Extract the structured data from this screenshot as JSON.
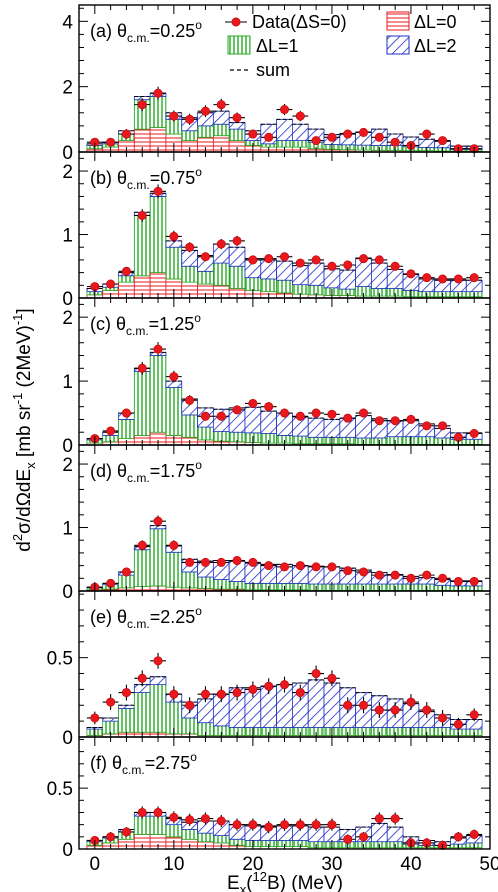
{
  "chart_data": {
    "type": "bar",
    "ylabel_parts": [
      "d",
      "2",
      "σ/dΩdE",
      "x",
      " [mb sr",
      "-1",
      " (2MeV)",
      "-1",
      "]"
    ],
    "xlabel_parts": [
      "E",
      "x",
      "(",
      "12",
      "B) (MeV)"
    ],
    "xlim": [
      -2,
      50
    ],
    "xticks": [
      0,
      10,
      20,
      30,
      40,
      50
    ],
    "x": [
      0,
      2,
      4,
      6,
      8,
      10,
      12,
      14,
      16,
      18,
      20,
      22,
      24,
      26,
      28,
      30,
      32,
      34,
      36,
      38,
      40,
      42,
      44,
      46,
      48
    ],
    "legend": {
      "data": "Data(ΔS=0)",
      "dl0": "ΔL=0",
      "dl1": "ΔL=1",
      "dl2": "ΔL=2",
      "sum": "sum"
    },
    "colors": {
      "data": "#e8181e",
      "dl0": "#e8181e",
      "dl1": "#22aa22",
      "dl2": "#1f2dc8",
      "sum": "#000000"
    },
    "panels": [
      {
        "label": "(a)",
        "angle": "0.25",
        "ylim": [
          0,
          4.5
        ],
        "yticks": [
          0,
          2,
          4
        ],
        "values": [
          0.3,
          0.3,
          0.55,
          1.45,
          1.8,
          1.1,
          1.0,
          1.25,
          1.45,
          1.05,
          0.55,
          0.45,
          1.3,
          1.1,
          0.35,
          0.45,
          0.55,
          0.6,
          0.45,
          0.3,
          0.2,
          0.55,
          0.35,
          0.1,
          0.1
        ],
        "errors": [
          0.12,
          0.12,
          0.15,
          0.2,
          0.2,
          0.17,
          0.17,
          0.18,
          0.18,
          0.16,
          0.13,
          0.13,
          0.17,
          0.16,
          0.12,
          0.12,
          0.13,
          0.13,
          0.12,
          0.12,
          0.1,
          0.13,
          0.12,
          0.1,
          0.1
        ],
        "dl0": [
          0.1,
          0.15,
          0.35,
          0.7,
          0.75,
          0.55,
          0.35,
          0.45,
          0.5,
          0.35,
          0.2,
          0.15,
          0.15,
          0.15,
          0.1,
          0.08,
          0.07,
          0.06,
          0.05,
          0.05,
          0.04,
          0.04,
          0.03,
          0.03,
          0.03
        ],
        "dl1": [
          0.1,
          0.1,
          0.2,
          0.9,
          0.95,
          0.45,
          0.3,
          0.35,
          0.35,
          0.35,
          0.15,
          0.1,
          0.2,
          0.2,
          0.2,
          0.15,
          0.15,
          0.15,
          0.15,
          0.15,
          0.12,
          0.1,
          0.1,
          0.05,
          0.05
        ],
        "dl2": [
          0.05,
          0.05,
          0.1,
          0.1,
          0.1,
          0.2,
          0.4,
          0.4,
          0.4,
          0.2,
          0.3,
          0.6,
          0.65,
          0.5,
          0.4,
          0.3,
          0.35,
          0.4,
          0.5,
          0.35,
          0.3,
          0.25,
          0.2,
          0.1,
          0.1
        ]
      },
      {
        "label": "(b)",
        "angle": "0.75",
        "ylim": [
          0,
          2.3
        ],
        "yticks": [
          0,
          1,
          2
        ],
        "values": [
          0.18,
          0.22,
          0.42,
          1.3,
          1.68,
          0.97,
          0.8,
          0.65,
          0.85,
          0.9,
          0.6,
          0.62,
          0.65,
          0.55,
          0.6,
          0.5,
          0.52,
          0.62,
          0.6,
          0.5,
          0.38,
          0.32,
          0.3,
          0.3,
          0.32
        ],
        "errors": [
          0.06,
          0.06,
          0.07,
          0.1,
          0.11,
          0.09,
          0.08,
          0.07,
          0.08,
          0.08,
          0.07,
          0.07,
          0.07,
          0.07,
          0.07,
          0.07,
          0.07,
          0.07,
          0.07,
          0.07,
          0.06,
          0.06,
          0.06,
          0.06,
          0.06
        ],
        "dl0": [
          0.05,
          0.12,
          0.25,
          0.35,
          0.4,
          0.3,
          0.25,
          0.22,
          0.2,
          0.15,
          0.12,
          0.1,
          0.08,
          0.06,
          0.05,
          0.04,
          0.04,
          0.03,
          0.03,
          0.03,
          0.02,
          0.02,
          0.02,
          0.02,
          0.02
        ],
        "dl1": [
          0.05,
          0.05,
          0.1,
          0.95,
          1.2,
          0.5,
          0.25,
          0.2,
          0.35,
          0.35,
          0.2,
          0.2,
          0.2,
          0.15,
          0.15,
          0.12,
          0.1,
          0.15,
          0.12,
          0.12,
          0.1,
          0.08,
          0.08,
          0.08,
          0.08
        ],
        "dl2": [
          0.05,
          0.05,
          0.05,
          0.05,
          0.05,
          0.1,
          0.25,
          0.25,
          0.3,
          0.3,
          0.3,
          0.3,
          0.3,
          0.3,
          0.35,
          0.3,
          0.3,
          0.45,
          0.4,
          0.3,
          0.25,
          0.2,
          0.18,
          0.18,
          0.18
        ]
      },
      {
        "label": "(c)",
        "angle": "1.25",
        "ylim": [
          0,
          2.3
        ],
        "yticks": [
          0,
          1,
          2
        ],
        "values": [
          0.1,
          0.22,
          0.5,
          1.2,
          1.5,
          1.07,
          0.7,
          0.45,
          0.45,
          0.55,
          0.65,
          0.6,
          0.5,
          0.45,
          0.5,
          0.48,
          0.42,
          0.5,
          0.38,
          0.38,
          0.4,
          0.3,
          0.3,
          0.12,
          0.18
        ],
        "errors": [
          0.05,
          0.06,
          0.07,
          0.1,
          0.11,
          0.09,
          0.08,
          0.07,
          0.07,
          0.07,
          0.07,
          0.07,
          0.07,
          0.07,
          0.07,
          0.07,
          0.06,
          0.07,
          0.06,
          0.06,
          0.06,
          0.06,
          0.06,
          0.05,
          0.05
        ],
        "dl0": [
          0.03,
          0.05,
          0.1,
          0.15,
          0.2,
          0.15,
          0.12,
          0.08,
          0.06,
          0.05,
          0.04,
          0.03,
          0.03,
          0.02,
          0.02,
          0.02,
          0.02,
          0.01,
          0.01,
          0.01,
          0.01,
          0.01,
          0.01,
          0.01,
          0.01
        ],
        "dl1": [
          0.05,
          0.1,
          0.3,
          1.0,
          1.2,
          0.75,
          0.35,
          0.2,
          0.15,
          0.15,
          0.15,
          0.15,
          0.12,
          0.12,
          0.1,
          0.1,
          0.1,
          0.1,
          0.1,
          0.12,
          0.12,
          0.12,
          0.1,
          0.08,
          0.08
        ],
        "dl2": [
          0.02,
          0.05,
          0.1,
          0.05,
          0.05,
          0.1,
          0.25,
          0.3,
          0.35,
          0.38,
          0.4,
          0.35,
          0.35,
          0.3,
          0.3,
          0.28,
          0.3,
          0.35,
          0.3,
          0.25,
          0.25,
          0.2,
          0.15,
          0.1,
          0.1
        ]
      },
      {
        "label": "(d)",
        "angle": "1.75",
        "ylim": [
          0,
          2.3
        ],
        "yticks": [
          0,
          1,
          2
        ],
        "values": [
          0.06,
          0.12,
          0.3,
          0.72,
          1.1,
          0.72,
          0.45,
          0.45,
          0.45,
          0.48,
          0.45,
          0.4,
          0.38,
          0.4,
          0.38,
          0.38,
          0.32,
          0.3,
          0.25,
          0.25,
          0.2,
          0.25,
          0.2,
          0.15,
          0.15
        ],
        "errors": [
          0.04,
          0.05,
          0.06,
          0.08,
          0.09,
          0.08,
          0.06,
          0.06,
          0.06,
          0.06,
          0.06,
          0.06,
          0.06,
          0.06,
          0.06,
          0.06,
          0.05,
          0.05,
          0.05,
          0.05,
          0.05,
          0.05,
          0.05,
          0.05,
          0.05
        ],
        "dl0": [
          0.02,
          0.03,
          0.05,
          0.07,
          0.08,
          0.06,
          0.05,
          0.04,
          0.03,
          0.03,
          0.02,
          0.02,
          0.02,
          0.02,
          0.01,
          0.01,
          0.01,
          0.01,
          0.01,
          0.01,
          0.01,
          0.01,
          0.01,
          0.01,
          0.01
        ],
        "dl1": [
          0.03,
          0.07,
          0.2,
          0.58,
          0.9,
          0.55,
          0.25,
          0.18,
          0.15,
          0.12,
          0.1,
          0.1,
          0.1,
          0.1,
          0.1,
          0.1,
          0.1,
          0.1,
          0.1,
          0.1,
          0.1,
          0.1,
          0.08,
          0.07,
          0.07
        ],
        "dl2": [
          0.01,
          0.02,
          0.05,
          0.05,
          0.05,
          0.1,
          0.2,
          0.25,
          0.3,
          0.32,
          0.32,
          0.3,
          0.3,
          0.28,
          0.28,
          0.27,
          0.25,
          0.22,
          0.18,
          0.15,
          0.12,
          0.1,
          0.09,
          0.08,
          0.08
        ]
      },
      {
        "label": "(e)",
        "angle": "2.25",
        "ylim": [
          0,
          0.92
        ],
        "yticks": [
          0,
          0.5
        ],
        "values": [
          0.12,
          0.22,
          0.28,
          0.37,
          0.48,
          0.27,
          0.2,
          0.27,
          0.27,
          0.28,
          0.3,
          0.32,
          0.33,
          0.28,
          0.4,
          0.37,
          0.2,
          0.2,
          0.17,
          0.17,
          0.22,
          0.17,
          0.12,
          0.08,
          0.14
        ],
        "errors": [
          0.04,
          0.05,
          0.05,
          0.05,
          0.05,
          0.05,
          0.05,
          0.05,
          0.05,
          0.05,
          0.05,
          0.05,
          0.05,
          0.05,
          0.05,
          0.05,
          0.05,
          0.05,
          0.05,
          0.05,
          0.05,
          0.05,
          0.05,
          0.04,
          0.04
        ],
        "dl0": [
          0.01,
          0.02,
          0.03,
          0.03,
          0.03,
          0.02,
          0.02,
          0.01,
          0.01,
          0.01,
          0.01,
          0.01,
          0.01,
          0.01,
          0.01,
          0.01,
          0.01,
          0.01,
          0.01,
          0.01,
          0.01,
          0.01,
          0.01,
          0.01,
          0.01
        ],
        "dl1": [
          0.04,
          0.08,
          0.15,
          0.25,
          0.3,
          0.2,
          0.1,
          0.08,
          0.06,
          0.05,
          0.05,
          0.05,
          0.05,
          0.05,
          0.05,
          0.05,
          0.05,
          0.05,
          0.05,
          0.05,
          0.05,
          0.05,
          0.05,
          0.04,
          0.04
        ],
        "dl2": [
          0.01,
          0.02,
          0.02,
          0.05,
          0.05,
          0.05,
          0.1,
          0.15,
          0.2,
          0.25,
          0.25,
          0.26,
          0.27,
          0.28,
          0.3,
          0.28,
          0.25,
          0.22,
          0.2,
          0.18,
          0.15,
          0.1,
          0.08,
          0.06,
          0.06
        ]
      },
      {
        "label": "(f)",
        "angle": "2.75",
        "ylim": [
          0,
          0.92
        ],
        "yticks": [
          0,
          0.5
        ],
        "values": [
          0.07,
          0.1,
          0.14,
          0.3,
          0.3,
          0.26,
          0.24,
          0.25,
          0.23,
          0.2,
          0.2,
          0.18,
          0.2,
          0.2,
          0.2,
          0.2,
          0.08,
          0.1,
          0.25,
          0.25,
          0.05,
          0.05,
          0.03,
          0.1,
          0.12
        ],
        "errors": [
          0.03,
          0.04,
          0.04,
          0.05,
          0.05,
          0.05,
          0.05,
          0.05,
          0.05,
          0.05,
          0.05,
          0.05,
          0.05,
          0.05,
          0.05,
          0.05,
          0.04,
          0.04,
          0.05,
          0.05,
          0.04,
          0.04,
          0.04,
          0.04,
          0.04
        ],
        "dl0": [
          0.03,
          0.05,
          0.08,
          0.12,
          0.12,
          0.1,
          0.08,
          0.06,
          0.05,
          0.03,
          0.02,
          0.02,
          0.02,
          0.02,
          0.01,
          0.01,
          0.01,
          0.01,
          0.01,
          0.01,
          0.01,
          0.01,
          0.01,
          0.01,
          0.01
        ],
        "dl1": [
          0.03,
          0.04,
          0.06,
          0.15,
          0.15,
          0.1,
          0.08,
          0.07,
          0.06,
          0.05,
          0.05,
          0.05,
          0.05,
          0.05,
          0.05,
          0.05,
          0.05,
          0.05,
          0.05,
          0.05,
          0.03,
          0.02,
          0.02,
          0.03,
          0.04
        ],
        "dl2": [
          0.01,
          0.01,
          0.02,
          0.03,
          0.03,
          0.05,
          0.06,
          0.1,
          0.12,
          0.12,
          0.12,
          0.12,
          0.12,
          0.12,
          0.12,
          0.12,
          0.1,
          0.12,
          0.15,
          0.12,
          0.06,
          0.04,
          0.03,
          0.05,
          0.06
        ]
      }
    ]
  }
}
